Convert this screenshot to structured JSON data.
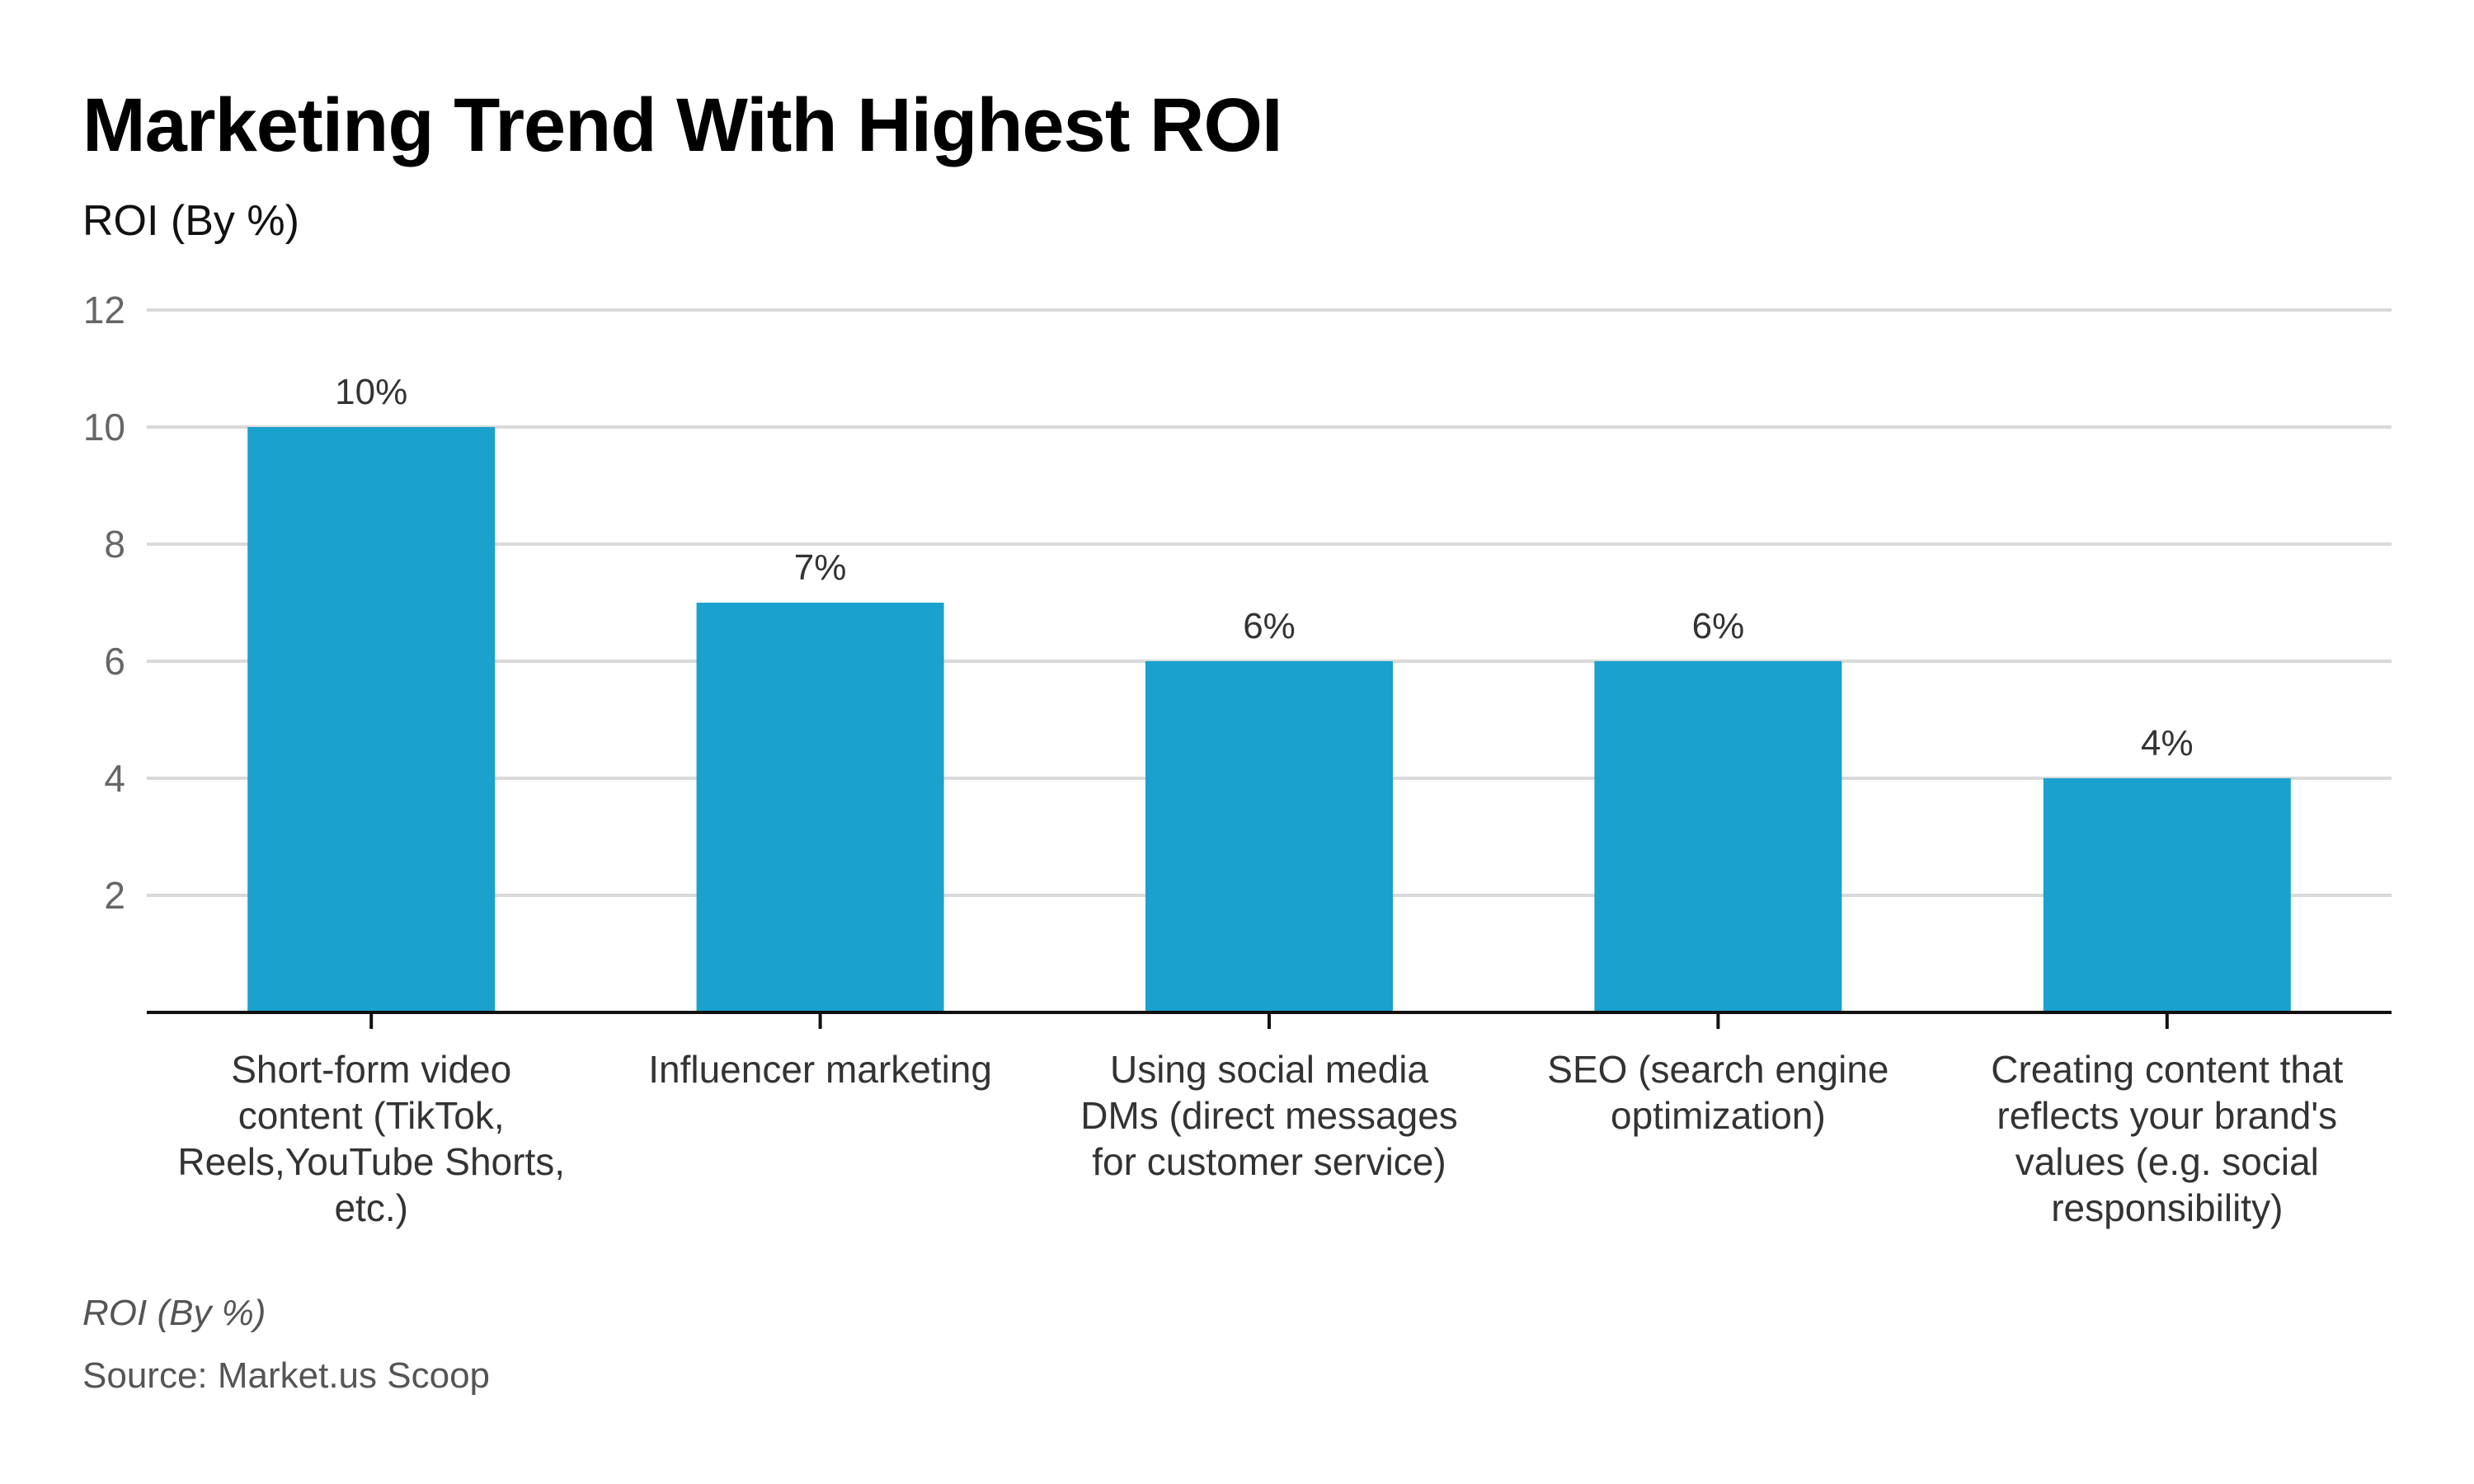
{
  "header": {
    "title": "Marketing Trend With Highest ROI",
    "subtitle": "ROI (By %)"
  },
  "footer": {
    "note": "ROI (By %)",
    "source": "Source: Market.us Scoop"
  },
  "colors": {
    "bar": "#1AA1CD",
    "gridline": "#D9D9D9",
    "axis": "#111111",
    "tick_label": "#666666",
    "data_label": "#333333",
    "category_label": "#333333"
  },
  "chart_data": {
    "type": "bar",
    "title": "Marketing Trend With Highest ROI",
    "ylabel": "ROI (By %)",
    "xlabel": "",
    "ylim": [
      0,
      12
    ],
    "yticks": [
      2,
      4,
      6,
      8,
      10,
      12
    ],
    "grid": true,
    "legend": "none",
    "categories": [
      [
        "Short-form video",
        "content (TikTok,",
        "Reels,YouTube Shorts,",
        "etc.)"
      ],
      [
        "Influencer marketing"
      ],
      [
        "Using social media",
        "DMs (direct messages",
        "for customer service)"
      ],
      [
        "SEO (search engine",
        "optimization)"
      ],
      [
        "Creating content that",
        "reflects your brand's",
        "values (e.g. social",
        "responsibility)"
      ]
    ],
    "values": [
      10,
      7,
      6,
      6,
      4
    ],
    "data_labels": [
      "10%",
      "7%",
      "6%",
      "6%",
      "4%"
    ]
  }
}
